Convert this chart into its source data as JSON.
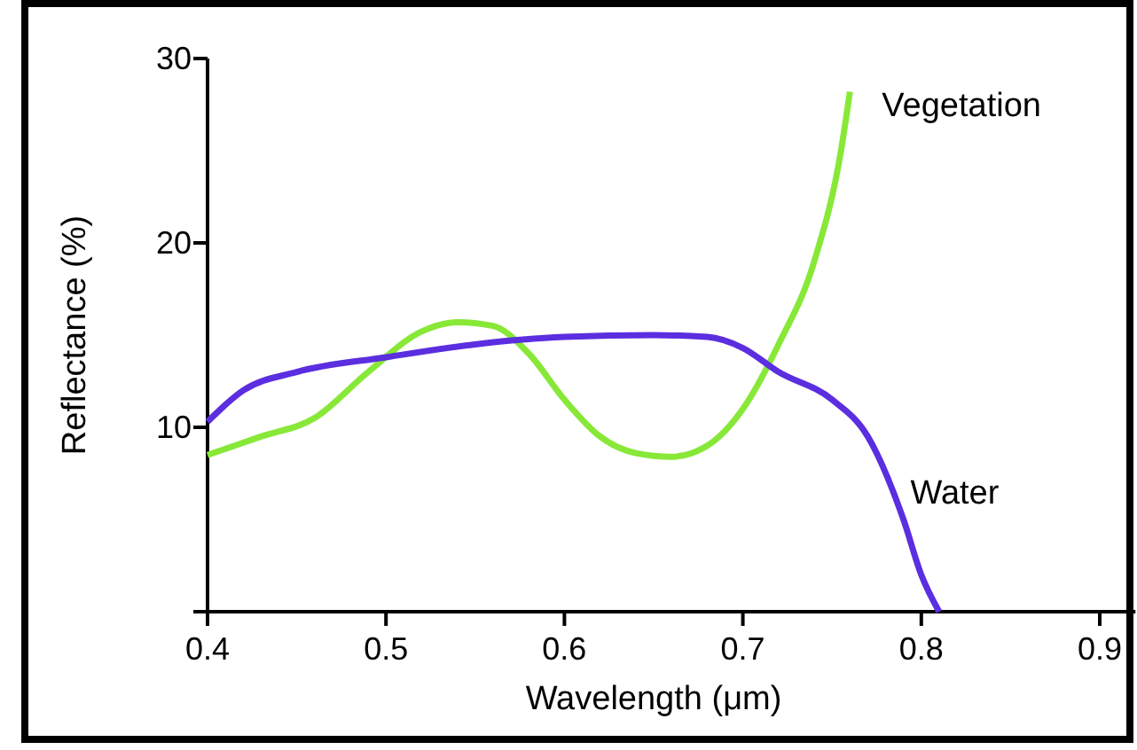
{
  "chart_data": {
    "type": "line",
    "xlabel": "Wavelength (μm)",
    "ylabel": "Reflectance (%)",
    "xlim": [
      0.4,
      0.92
    ],
    "xticks": [
      0.4,
      0.5,
      0.6,
      0.7,
      0.8,
      0.9
    ],
    "ylim": [
      0,
      30
    ],
    "yticks": [
      {
        "value": 0,
        "label": null
      },
      10,
      20,
      30
    ],
    "grid": false,
    "marker": "none",
    "line_style": "solid",
    "series": [
      {
        "name": "Vegetation",
        "color": "#88e838",
        "x": [
          0.4,
          0.43,
          0.46,
          0.49,
          0.52,
          0.54,
          0.56,
          0.58,
          0.6,
          0.62,
          0.64,
          0.66,
          0.68,
          0.7,
          0.72,
          0.74,
          0.755,
          0.76
        ],
        "values": [
          8.5,
          9.5,
          10.5,
          13,
          15.2,
          15.7,
          15.5,
          14,
          11.5,
          9.5,
          8.6,
          8.4,
          9,
          11,
          14.5,
          19,
          25,
          28.2
        ]
      },
      {
        "name": "Water",
        "color": "#5b2ee0",
        "x": [
          0.4,
          0.42,
          0.45,
          0.5,
          0.55,
          0.6,
          0.65,
          0.68,
          0.7,
          0.72,
          0.75,
          0.77,
          0.79,
          0.8,
          0.81
        ],
        "values": [
          10.3,
          12,
          13,
          13.8,
          14.5,
          14.9,
          15,
          14.9,
          14.3,
          13,
          11.5,
          9.5,
          5,
          2,
          0
        ]
      }
    ]
  }
}
